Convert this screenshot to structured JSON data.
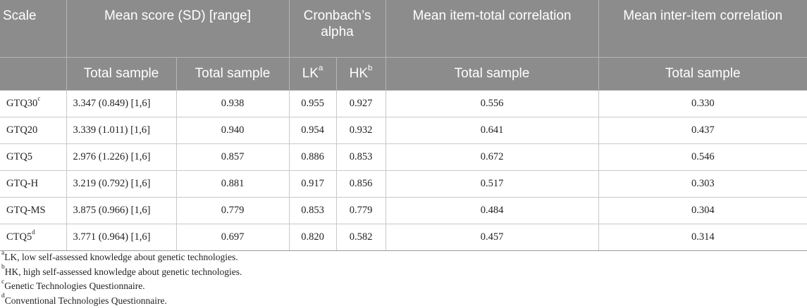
{
  "table": {
    "header_row1": {
      "scale": "Scale",
      "mean_score": "Mean score (SD) [range]",
      "cronbach": "Cronbach’s alpha",
      "item_total": "Mean item-total correlation",
      "inter_item": "Mean inter-item correlation"
    },
    "header_row2": {
      "col1": "Total sample",
      "col2": "Total sample",
      "lk": "LK",
      "lk_sup": "a",
      "hk": "HK",
      "hk_sup": "b",
      "col5": "Total sample",
      "col6": "Total sample"
    },
    "rows": [
      {
        "scale": "GTQ30",
        "sup": "c",
        "mean": "3.347 (0.849) [1,6]",
        "total": "0.938",
        "lk": "0.955",
        "hk": "0.927",
        "item_total": "0.556",
        "inter_item": "0.330"
      },
      {
        "scale": "GTQ20",
        "sup": "",
        "mean": "3.339 (1.011) [1,6]",
        "total": "0.940",
        "lk": "0.954",
        "hk": "0.932",
        "item_total": "0.641",
        "inter_item": "0.437"
      },
      {
        "scale": "GTQ5",
        "sup": "",
        "mean": "2.976 (1.226) [1,6]",
        "total": "0.857",
        "lk": "0.886",
        "hk": "0.853",
        "item_total": "0.672",
        "inter_item": "0.546"
      },
      {
        "scale": "GTQ-H",
        "sup": "",
        "mean": "3.219 (0.792) [1,6]",
        "total": "0.881",
        "lk": "0.917",
        "hk": "0.856",
        "item_total": "0.517",
        "inter_item": "0.303"
      },
      {
        "scale": "GTQ-MS",
        "sup": "",
        "mean": "3.875 (0.966) [1,6]",
        "total": "0.779",
        "lk": "0.853",
        "hk": "0.779",
        "item_total": "0.484",
        "inter_item": "0.304"
      },
      {
        "scale": "CTQ5",
        "sup": "d",
        "mean": "3.771 (0.964) [1,6]",
        "total": "0.697",
        "lk": "0.820",
        "hk": "0.582",
        "item_total": "0.457",
        "inter_item": "0.314"
      }
    ]
  },
  "footnotes": [
    {
      "mark": "a",
      "text": "LK, low self-assessed knowledge about genetic technologies."
    },
    {
      "mark": "b",
      "text": "HK, high self-assessed knowledge about genetic technologies."
    },
    {
      "mark": "c",
      "text": "Genetic Technologies Questionnaire."
    },
    {
      "mark": "d",
      "text": "Conventional Technologies Questionnaire."
    }
  ],
  "colors": {
    "header_bg": "#8c8c8c",
    "header_text": "#ffffff",
    "body_text": "#222222"
  }
}
